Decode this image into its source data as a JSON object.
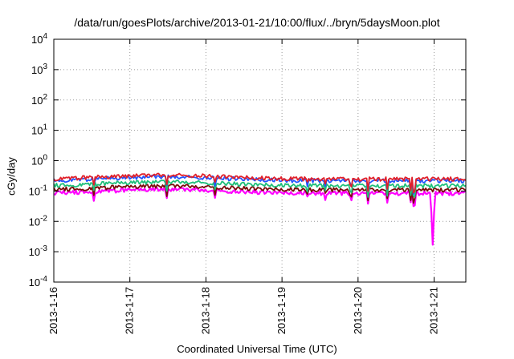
{
  "chart_data": {
    "type": "line",
    "title": "/data/run/goesPlots/archive/2013-01-21/10:00/flux/../bryn/5daysMoon.plot",
    "xlabel": "Coordinated Universal Time (UTC)",
    "ylabel": "cGy/day",
    "yscale": "log",
    "ylim": [
      0.0001,
      10000
    ],
    "xlim": [
      "2013-01-16",
      "2013-01-21 10:00"
    ],
    "yticks": [
      {
        "base": "10",
        "exp": "-4"
      },
      {
        "base": "10",
        "exp": "-3"
      },
      {
        "base": "10",
        "exp": "-2"
      },
      {
        "base": "10",
        "exp": "-1"
      },
      {
        "base": "10",
        "exp": "0"
      },
      {
        "base": "10",
        "exp": "1"
      },
      {
        "base": "10",
        "exp": "2"
      },
      {
        "base": "10",
        "exp": "3"
      },
      {
        "base": "10",
        "exp": "4"
      }
    ],
    "xticks": [
      "2013-1-16",
      "2013-1-17",
      "2013-1-18",
      "2013-1-19",
      "2013-1-20",
      "2013-1-21"
    ],
    "grid": true,
    "series": [
      {
        "color": "#ff00ff",
        "base": 0.085
      },
      {
        "color": "#7b0a0a",
        "base": 0.11
      },
      {
        "color": "#1fbf7a",
        "base": 0.15
      },
      {
        "color": "#2255ff",
        "base": 0.22
      },
      {
        "color": "#e0202a",
        "base": 0.25
      }
    ]
  }
}
